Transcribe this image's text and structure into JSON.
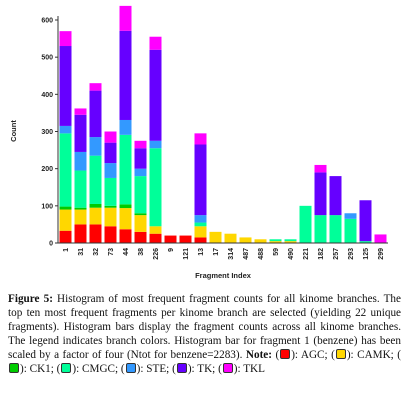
{
  "chart_data": {
    "type": "bar",
    "stacked": true,
    "xlabel": "Fragment Index",
    "ylabel": "Count",
    "ylim": [
      0,
      600
    ],
    "yticks": [
      0,
      100,
      200,
      300,
      400,
      500,
      600
    ],
    "grid": false,
    "categories": [
      "1",
      "31",
      "32",
      "73",
      "44",
      "38",
      "226",
      "9",
      "121",
      "13",
      "17",
      "314",
      "487",
      "488",
      "59",
      "490",
      "221",
      "182",
      "257",
      "293",
      "125",
      "299"
    ],
    "series": [
      {
        "name": "AGC",
        "color": "#ff0000",
        "values": [
          33,
          50,
          50,
          45,
          37,
          30,
          25,
          20,
          20,
          15,
          0,
          0,
          0,
          0,
          0,
          0,
          0,
          0,
          0,
          0,
          0,
          0
        ]
      },
      {
        "name": "CAMK",
        "color": "#ffd700",
        "values": [
          57,
          40,
          45,
          50,
          57,
          45,
          20,
          0,
          0,
          30,
          30,
          25,
          15,
          10,
          5,
          5,
          0,
          0,
          0,
          0,
          0,
          0
        ]
      },
      {
        "name": "CK1",
        "color": "#00cc00",
        "values": [
          8,
          5,
          10,
          5,
          10,
          5,
          0,
          0,
          0,
          0,
          0,
          0,
          0,
          0,
          0,
          0,
          0,
          0,
          0,
          0,
          0,
          0
        ]
      },
      {
        "name": "CMGC",
        "color": "#00ff99",
        "values": [
          197,
          100,
          130,
          75,
          187,
          100,
          210,
          0,
          0,
          10,
          0,
          0,
          0,
          0,
          5,
          5,
          100,
          75,
          75,
          65,
          5,
          0
        ]
      },
      {
        "name": "STE",
        "color": "#3399ff",
        "values": [
          20,
          50,
          50,
          40,
          40,
          20,
          20,
          0,
          0,
          20,
          0,
          0,
          0,
          0,
          0,
          0,
          0,
          0,
          0,
          15,
          0,
          0
        ]
      },
      {
        "name": "TK",
        "color": "#6600ff",
        "values": [
          215,
          100,
          125,
          55,
          240,
          55,
          245,
          0,
          0,
          190,
          0,
          0,
          0,
          0,
          0,
          0,
          0,
          115,
          105,
          0,
          110,
          0
        ]
      },
      {
        "name": "TKL",
        "color": "#ff00ff",
        "values": [
          40,
          17,
          20,
          30,
          67,
          20,
          35,
          0,
          0,
          30,
          0,
          0,
          0,
          0,
          0,
          0,
          0,
          20,
          0,
          0,
          0,
          23
        ]
      }
    ]
  },
  "caption": {
    "fig_label": "Figure 5:",
    "text": " Histogram of most frequent fragment counts for all kinome branches. The top ten most frequent fragments per kinome branch are selected (yielding 22 unique fragments).  Histogram bars display the fragment counts across all kinome branches. The legend indicates branch colors. Histogram bar for fragment 1 (benzene) has been scaled by a factor of four (Ntot for benzene=2283). ",
    "note_label": "Note:",
    "legend": [
      {
        "key": "AGC",
        "text": "(  ): AGC; "
      },
      {
        "key": "CAMK",
        "text": "(  ): CAMK; "
      },
      {
        "key": "CK1",
        "text": "(  ): CK1; "
      },
      {
        "key": "CMGC",
        "text": "(  ): CMGC; "
      },
      {
        "key": "STE",
        "text": "(  ): STE; "
      },
      {
        "key": "TK",
        "text": "(  ): TK; "
      },
      {
        "key": "TKL",
        "text": "(  ): TKL"
      }
    ]
  }
}
